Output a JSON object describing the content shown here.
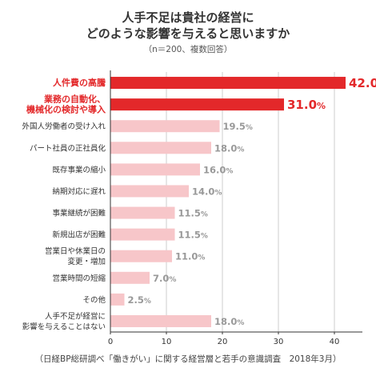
{
  "chart_data": {
    "type": "bar",
    "orientation": "horizontal",
    "title_lines": [
      "人手不足は貴社の経営に",
      "どのような影響を与えると思いますか"
    ],
    "subtitle": "（n＝200、複数回答）",
    "source": "（日経BP総研調べ「働きがい」に関する経営層と若手の意識調査　2018年3月）",
    "categories": [
      [
        "人件費の高騰"
      ],
      [
        "業務の自動化、",
        "機械化の検討や導入"
      ],
      [
        "外国人労働者の受け入れ"
      ],
      [
        "パート社員の正社員化"
      ],
      [
        "既存事業の縮小"
      ],
      [
        "納期対応に遅れ"
      ],
      [
        "事業継続が困難"
      ],
      [
        "新規出店が困難"
      ],
      [
        "営業日や休業日の",
        "変更・増加"
      ],
      [
        "営業時間の短縮"
      ],
      [
        "その他"
      ],
      [
        "人手不足が経営に",
        "影響を与えることはない"
      ]
    ],
    "values": [
      42.0,
      31.0,
      19.5,
      18.0,
      16.0,
      14.0,
      11.5,
      11.5,
      11.0,
      7.0,
      2.5,
      18.0
    ],
    "value_labels": [
      "42.0",
      "31.0",
      "19.5",
      "18.0",
      "16.0",
      "14.0",
      "11.5",
      "11.5",
      "11.0",
      "7.0",
      "2.5",
      "18.0"
    ],
    "unit": "%",
    "highlighted": [
      true,
      true,
      false,
      false,
      false,
      false,
      false,
      false,
      false,
      false,
      false,
      false
    ],
    "xlim": [
      0,
      45
    ],
    "xticks": [
      0,
      10,
      20,
      30,
      40
    ],
    "grid": true,
    "colors": {
      "highlight": "#e3282a",
      "normal": "#f7c6c9",
      "label_normal": "#999999",
      "category_normal": "#333333",
      "grid": "#cccccc"
    }
  }
}
